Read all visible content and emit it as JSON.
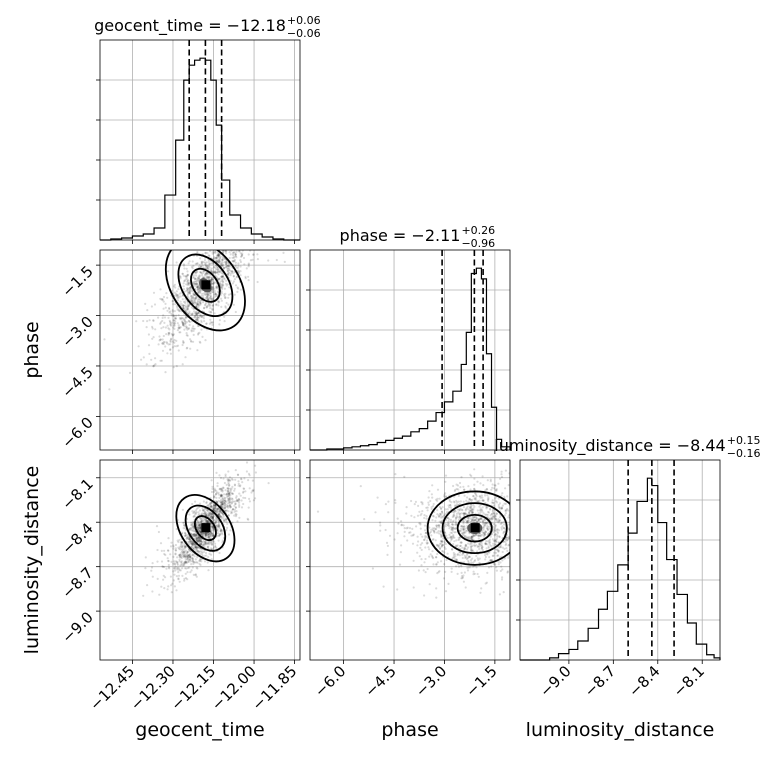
{
  "chart_data": {
    "type": "corner",
    "grid": true,
    "parameters": [
      {
        "name": "geocent_time",
        "axis_label": "geocent_time",
        "title": "geocent_time = −12.18",
        "title_sup": "+0.06",
        "title_sub": "−0.06",
        "median": -12.18,
        "quantiles": [
          -12.24,
          -12.18,
          -12.12
        ],
        "range": [
          -12.57,
          -11.83
        ],
        "ticks": [
          -12.45,
          -12.3,
          -12.15,
          -12.0,
          -11.85
        ],
        "tick_labels": [
          "−12.45",
          "−12.30",
          "−12.15",
          "−12.00",
          "−11.85"
        ],
        "hist": {
          "edges": [
            -12.57,
            -12.53,
            -12.49,
            -12.45,
            -12.41,
            -12.37,
            -12.33,
            -12.29,
            -12.26,
            -12.24,
            -12.22,
            -12.2,
            -12.18,
            -12.16,
            -12.14,
            -12.12,
            -12.09,
            -12.05,
            -12.01,
            -11.97,
            -11.93,
            -11.89,
            -11.83
          ],
          "counts": [
            0,
            1,
            2,
            4,
            6,
            12,
            45,
            100,
            160,
            175,
            180,
            182,
            180,
            160,
            115,
            60,
            25,
            12,
            6,
            3,
            1,
            0
          ]
        }
      },
      {
        "name": "phase",
        "axis_label": "phase",
        "title": "phase = −2.11",
        "title_sup": "+0.26",
        "title_sub": "−0.96",
        "median": -2.11,
        "quantiles": [
          -3.07,
          -2.11,
          -1.85
        ],
        "range": [
          -7.0,
          -1.05
        ],
        "ticks": [
          -6.0,
          -4.5,
          -3.0,
          -1.5
        ],
        "tick_labels": [
          "−6.0",
          "−4.5",
          "−3.0",
          "−1.5"
        ],
        "hist": {
          "edges": [
            -7.0,
            -6.75,
            -6.5,
            -6.25,
            -6.0,
            -5.75,
            -5.5,
            -5.25,
            -5.0,
            -4.75,
            -4.5,
            -4.25,
            -4.0,
            -3.75,
            -3.5,
            -3.25,
            -3.0,
            -2.75,
            -2.5,
            -2.35,
            -2.2,
            -2.05,
            -1.9,
            -1.75,
            -1.6,
            -1.45,
            -1.3,
            -1.05
          ],
          "counts": [
            0,
            0,
            1,
            1,
            2,
            3,
            4,
            5,
            7,
            9,
            11,
            13,
            17,
            20,
            27,
            35,
            45,
            55,
            80,
            110,
            165,
            170,
            160,
            90,
            40,
            10,
            3
          ]
        }
      },
      {
        "name": "luminosity_distance",
        "axis_label": "luminosity_distance",
        "title": "luminosity_distance = −8.44",
        "title_sup": "+0.15",
        "title_sub": "−0.16",
        "median": -8.44,
        "quantiles": [
          -8.6,
          -8.44,
          -8.29
        ],
        "range": [
          -9.33,
          -7.98
        ],
        "ticks": [
          -9.0,
          -8.7,
          -8.4,
          -8.1
        ],
        "tick_labels": [
          "−9.0",
          "−8.7",
          "−8.4",
          "−8.1"
        ],
        "hist": {
          "edges": [
            -9.33,
            -9.13,
            -9.07,
            -9.0,
            -8.94,
            -8.87,
            -8.8,
            -8.74,
            -8.67,
            -8.6,
            -8.54,
            -8.47,
            -8.44,
            -8.4,
            -8.34,
            -8.27,
            -8.2,
            -8.14,
            -8.07,
            -8.02,
            -7.98
          ],
          "counts": [
            0,
            2,
            6,
            10,
            18,
            30,
            48,
            65,
            90,
            120,
            150,
            172,
            165,
            130,
            95,
            62,
            35,
            15,
            5,
            2
          ]
        }
      }
    ],
    "pairs": [
      {
        "x": 0,
        "y": 1,
        "mean": [
          -12.18,
          -2.1
        ],
        "sd": [
          0.075,
          0.9
        ],
        "rho": 0.75
      },
      {
        "x": 0,
        "y": 2,
        "mean": [
          -12.18,
          -8.44
        ],
        "sd": [
          0.055,
          0.15
        ],
        "rho": 0.8
      },
      {
        "x": 1,
        "y": 2,
        "mean": [
          -2.1,
          -8.44
        ],
        "sd": [
          0.85,
          0.15
        ],
        "rho": 0.05
      }
    ]
  }
}
